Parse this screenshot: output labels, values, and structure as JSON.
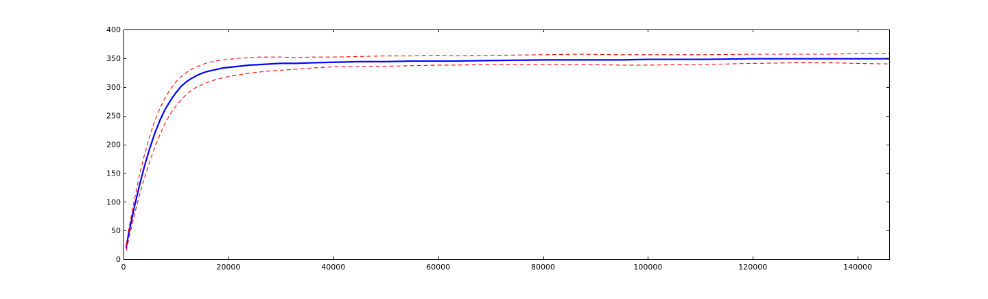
{
  "chart_data": {
    "type": "line",
    "title": "",
    "xlabel": "",
    "ylabel": "",
    "xlim": [
      0,
      146000
    ],
    "ylim": [
      0,
      400
    ],
    "x_ticks": [
      0,
      20000,
      40000,
      60000,
      80000,
      100000,
      120000,
      140000
    ],
    "x_tick_labels": [
      "0",
      "20000",
      "40000",
      "60000",
      "80000",
      "100000",
      "120000",
      "140000"
    ],
    "y_ticks": [
      0,
      50,
      100,
      150,
      200,
      250,
      300,
      350,
      400
    ],
    "y_tick_labels": [
      "0",
      "50",
      "100",
      "150",
      "200",
      "250",
      "300",
      "350",
      "400"
    ],
    "grid": false,
    "legend": false,
    "x": [
      500,
      1000,
      2000,
      3000,
      4000,
      5000,
      6000,
      7000,
      8000,
      9000,
      10000,
      11000,
      12000,
      13000,
      14000,
      15000,
      16000,
      17000,
      18000,
      19000,
      20000,
      22000,
      24000,
      26000,
      28000,
      30000,
      33000,
      36000,
      40000,
      45000,
      50000,
      55000,
      60000,
      63000,
      70000,
      80000,
      87000,
      95000,
      100000,
      110000,
      120000,
      128000,
      135000,
      140000,
      146000
    ],
    "series": [
      {
        "color": "#0000ff",
        "style": "solid",
        "values": [
          20,
          45,
          88,
          127,
          162,
          193,
          220,
          243,
          262,
          277,
          290,
          301,
          309,
          315,
          320,
          324,
          327,
          329,
          331,
          333,
          334,
          336,
          338,
          339,
          340,
          341,
          341,
          342,
          343,
          344,
          344,
          345,
          345,
          345,
          346,
          347,
          347,
          347,
          348,
          348,
          349,
          349,
          349,
          349,
          349
        ]
      },
      {
        "color": "#ff0000",
        "style": "dashed",
        "values": [
          23,
          52,
          100,
          145,
          182,
          214,
          242,
          264,
          282,
          297,
          309,
          318,
          325,
          331,
          335,
          339,
          342,
          344,
          346,
          347,
          348,
          350,
          351,
          352,
          352,
          352,
          351,
          352,
          352,
          353,
          354,
          354,
          355,
          354,
          355,
          356,
          357,
          356,
          356,
          356,
          357,
          357,
          357,
          358,
          358
        ]
      },
      {
        "color": "#ff0000",
        "style": "dashed",
        "values": [
          15,
          35,
          75,
          110,
          142,
          170,
          196,
          218,
          238,
          254,
          267,
          278,
          287,
          294,
          300,
          304,
          308,
          311,
          314,
          316,
          318,
          321,
          324,
          326,
          328,
          329,
          331,
          333,
          335,
          336,
          336,
          337,
          338,
          338,
          339,
          339,
          339,
          338,
          338,
          339,
          341,
          342,
          342,
          341,
          340
        ]
      }
    ]
  }
}
